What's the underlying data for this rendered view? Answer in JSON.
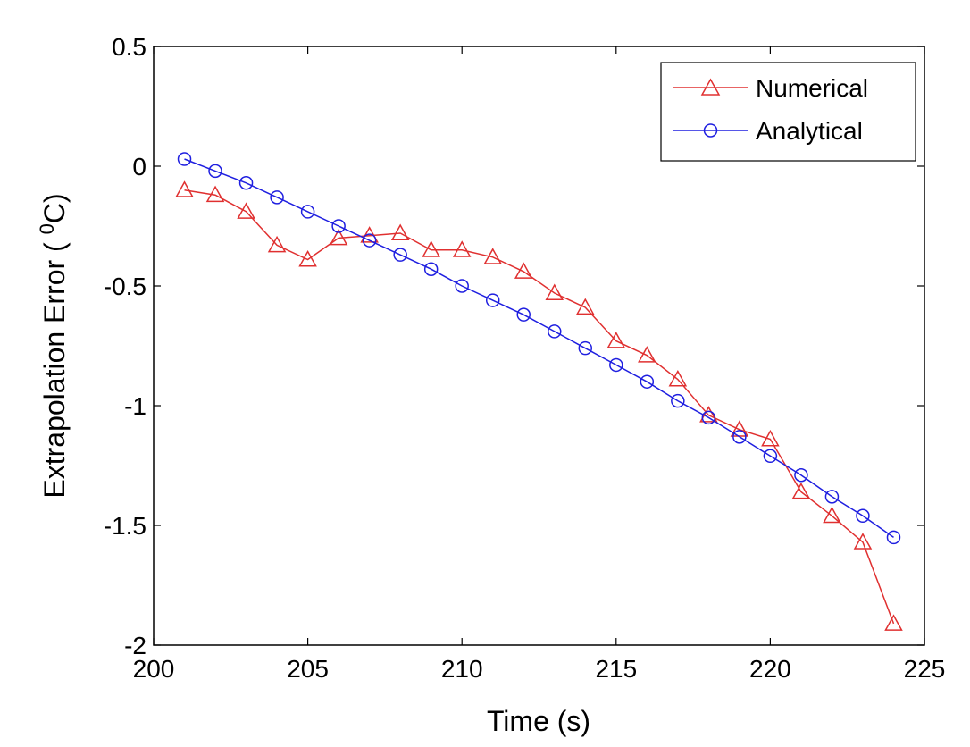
{
  "chart_data": {
    "type": "line",
    "title": "",
    "xlabel": "Time (s)",
    "ylabel_text": "Extrapolation Error ( ",
    "ylabel_sup": "0",
    "ylabel_unit": "C)",
    "xlim": [
      200,
      225
    ],
    "ylim": [
      -2,
      0.5
    ],
    "xticks": [
      200,
      205,
      210,
      215,
      220,
      225
    ],
    "yticks": [
      -2,
      -1.5,
      -1,
      -0.5,
      0,
      0.5
    ],
    "xtick_labels": [
      "200",
      "205",
      "210",
      "215",
      "220",
      "225"
    ],
    "ytick_labels": [
      "-2",
      "-1.5",
      "-1",
      "-0.5",
      "0",
      "0.5"
    ],
    "grid": false,
    "legend_position": "top-right",
    "x": [
      201,
      202,
      203,
      204,
      205,
      206,
      207,
      208,
      209,
      210,
      211,
      212,
      213,
      214,
      215,
      216,
      217,
      218,
      219,
      220,
      221,
      222,
      223,
      224
    ],
    "series": [
      {
        "name": "Numerical",
        "color": "#e03030",
        "marker": "triangle",
        "values": [
          -0.1,
          -0.12,
          -0.19,
          -0.33,
          -0.39,
          -0.3,
          -0.29,
          -0.28,
          -0.35,
          -0.35,
          -0.38,
          -0.44,
          -0.53,
          -0.59,
          -0.73,
          -0.79,
          -0.89,
          -1.04,
          -1.1,
          -1.14,
          -1.36,
          -1.46,
          -1.57,
          -1.91
        ]
      },
      {
        "name": "Analytical",
        "color": "#1f1fe0",
        "marker": "circle",
        "values": [
          0.03,
          -0.02,
          -0.07,
          -0.13,
          -0.19,
          -0.25,
          -0.31,
          -0.37,
          -0.43,
          -0.5,
          -0.56,
          -0.62,
          -0.69,
          -0.76,
          -0.83,
          -0.9,
          -0.98,
          -1.05,
          -1.13,
          -1.21,
          -1.29,
          -1.38,
          -1.46,
          -1.55
        ]
      }
    ]
  }
}
